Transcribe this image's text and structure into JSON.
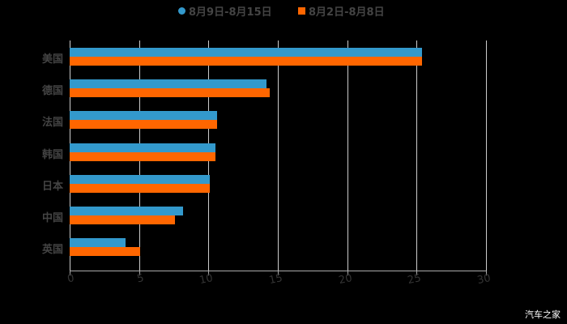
{
  "legend": {
    "series1": "8月9日-8月15日",
    "series2": "8月2日-8月8日"
  },
  "colors": {
    "series1": "#3399cc",
    "series2": "#ff6600"
  },
  "watermark": "汽车之家",
  "chart_data": {
    "type": "bar",
    "orientation": "horizontal",
    "title": "",
    "categories": [
      "美国",
      "德国",
      "法国",
      "韩国",
      "日本",
      "中国",
      "英国"
    ],
    "series": [
      {
        "name": "8月9日-8月15日",
        "color": "#3399cc",
        "values": [
          25.4,
          14.2,
          10.6,
          10.5,
          10.1,
          8.2,
          4.0
        ]
      },
      {
        "name": "8月2日-8月8日",
        "color": "#ff6600",
        "values": [
          25.4,
          14.4,
          10.6,
          10.5,
          10.1,
          7.6,
          5.1
        ]
      }
    ],
    "xlabel": "",
    "ylabel": "",
    "xlim": [
      0,
      30
    ],
    "xticks": [
      "0",
      "5",
      "10",
      "15",
      "20",
      "25",
      "30"
    ],
    "grid": true,
    "legend_position": "top"
  }
}
